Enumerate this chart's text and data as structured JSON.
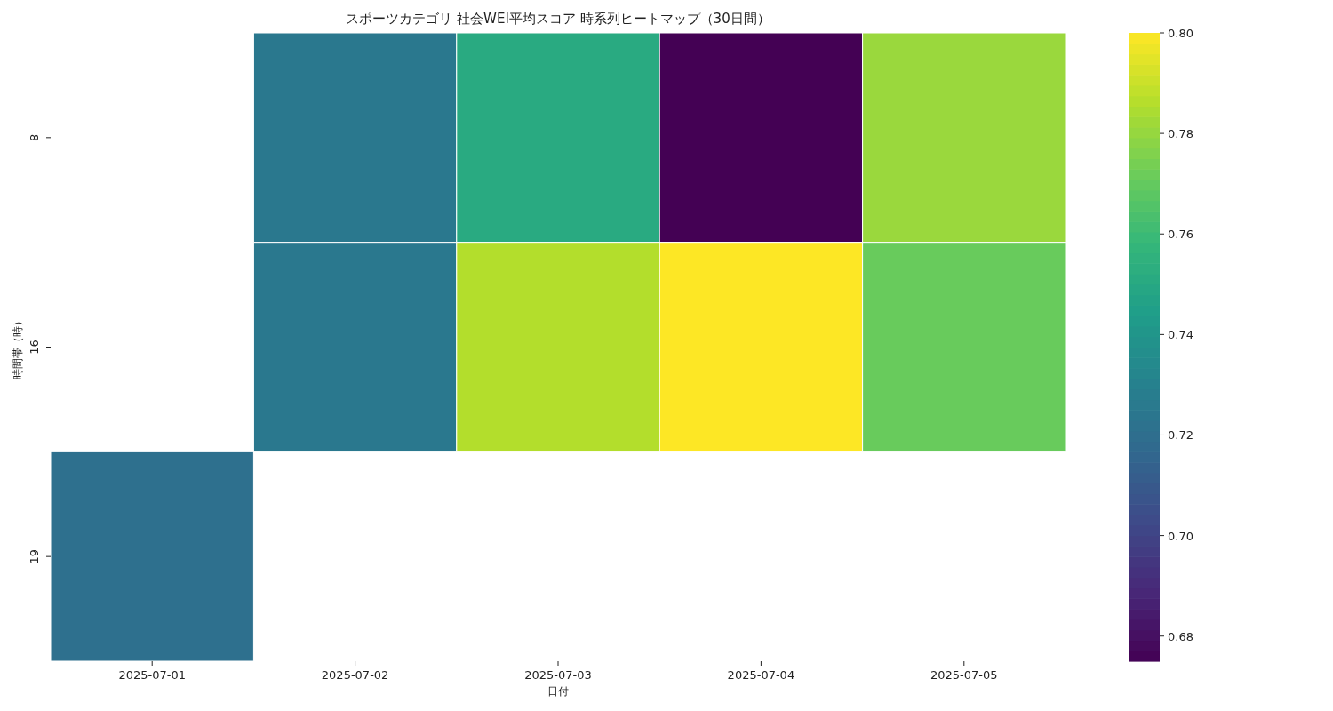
{
  "chart_data": {
    "type": "heatmap",
    "title": "スポーツカテゴリ 社会WEI平均スコア 時系列ヒートマップ（30日間）",
    "xlabel": "日付",
    "ylabel": "時間帯（時）",
    "categories": [
      "2025-07-01",
      "2025-07-02",
      "2025-07-03",
      "2025-07-04",
      "2025-07-05"
    ],
    "y_categories": [
      "8",
      "16",
      "19"
    ],
    "cells": [
      [
        null,
        0.725,
        0.751,
        0.675,
        0.781
      ],
      [
        null,
        0.725,
        0.786,
        0.8,
        0.771
      ],
      [
        0.721,
        null,
        null,
        null,
        null
      ]
    ],
    "clim": [
      0.675,
      0.8
    ],
    "cticks": [
      {
        "value": 0.68,
        "label": "0.68"
      },
      {
        "value": 0.7,
        "label": "0.70"
      },
      {
        "value": 0.72,
        "label": "0.72"
      },
      {
        "value": 0.74,
        "label": "0.74"
      },
      {
        "value": 0.76,
        "label": "0.76"
      },
      {
        "value": 0.78,
        "label": "0.78"
      },
      {
        "value": 0.8,
        "label": "0.80"
      }
    ]
  }
}
